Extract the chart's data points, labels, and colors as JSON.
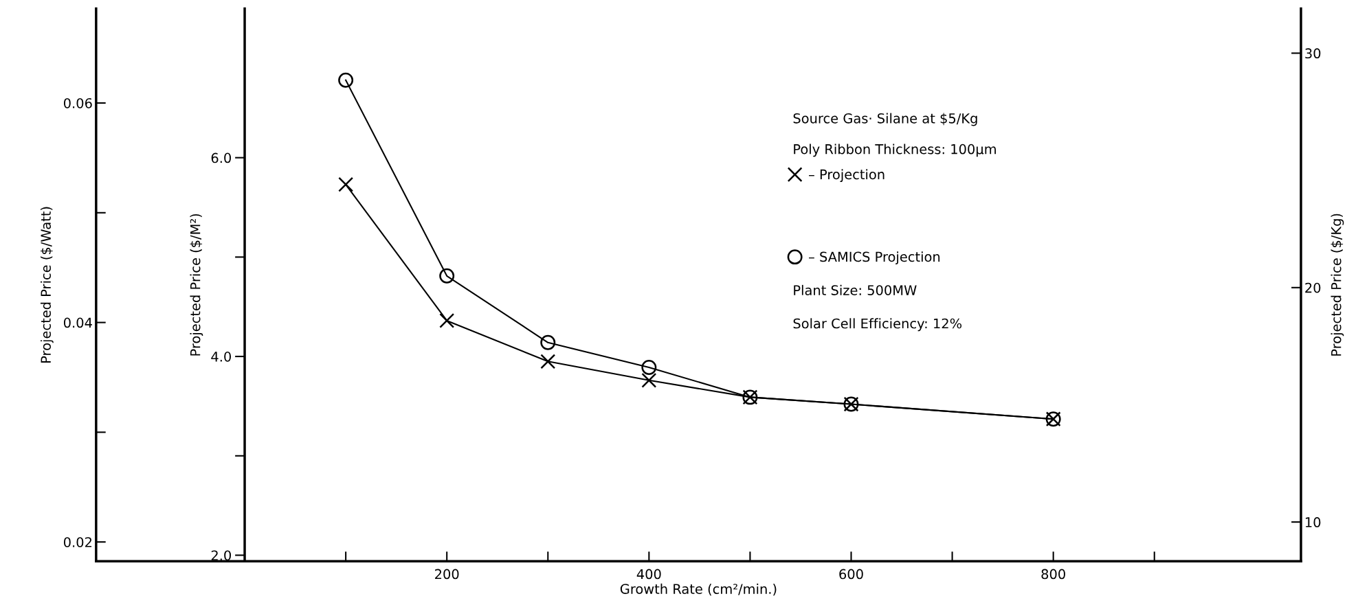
{
  "chart_data": {
    "type": "line",
    "xlabel": "Growth Rate (cm²/min.)",
    "ylabel": "Projected Price ($/M²)",
    "y2label": "Projected Price ($/Kg)",
    "y3label": "Projected Price ($/Watt)",
    "x": [
      100,
      200,
      300,
      400,
      500,
      600,
      800
    ],
    "series": [
      {
        "name": "– Projection",
        "color": "#000000",
        "marker": "cross",
        "values": [
          5.73,
          4.36,
          3.95,
          3.76,
          3.59,
          3.52,
          3.37
        ]
      },
      {
        "name": "– SAMICS Projection",
        "color": "#000000",
        "marker": "circle",
        "values": [
          6.78,
          4.81,
          4.14,
          3.89,
          3.59,
          3.52,
          3.37
        ]
      }
    ],
    "xlim": [
      -147,
      1045
    ],
    "xticks": [
      {
        "value": 100,
        "label": null
      },
      200,
      {
        "value": 300,
        "label": null
      },
      400,
      {
        "value": 500,
        "label": null
      },
      600,
      {
        "value": 700,
        "label": null
      },
      800,
      {
        "value": 900,
        "label": null
      }
    ],
    "ylim": [
      1.94,
      7.5
    ],
    "yticks": [
      {
        "value": 2,
        "label": "2.0"
      },
      {
        "value": 3,
        "label": null
      },
      {
        "value": 4,
        "label": "4.0"
      },
      {
        "value": 5,
        "label": null
      },
      {
        "value": 6,
        "label": "6.0"
      }
    ],
    "y2lim": [
      8.33,
      31.9
    ],
    "y2ticks": [
      10,
      20,
      30
    ],
    "y3lim": [
      0.01825,
      0.0686
    ],
    "y3ticks": [
      0.02,
      {
        "value": 0.03,
        "label": null
      },
      0.04,
      {
        "value": 0.05,
        "label": null
      },
      0.06
    ],
    "annotations": [
      "Source Gas· Silane at $5/Kg",
      "Poly Ribbon Thickness: 100µm",
      "Plant Size: 500MW",
      "Solar Cell Efficiency: 12%"
    ],
    "legend": "top right",
    "line_style": "solid",
    "grid": false
  }
}
